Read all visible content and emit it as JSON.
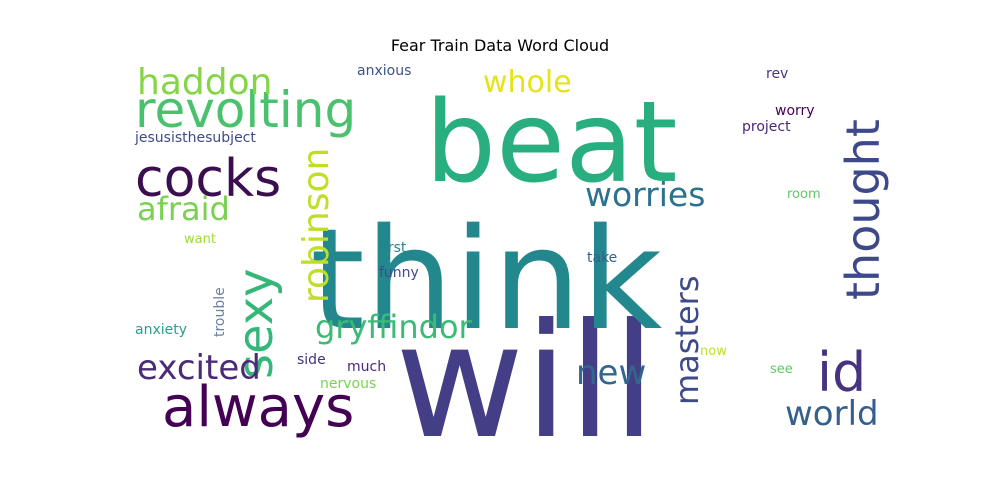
{
  "chart_data": {
    "type": "wordcloud",
    "title": "Fear Train Data Word Cloud",
    "words": [
      {
        "text": "will",
        "color": "#433e85"
      },
      {
        "text": "think",
        "color": "#23888e"
      },
      {
        "text": "beat",
        "color": "#29af7f"
      },
      {
        "text": "always",
        "color": "#440154"
      },
      {
        "text": "revolting",
        "color": "#4ac16d"
      },
      {
        "text": "cocks",
        "color": "#3b0f4f"
      },
      {
        "text": "sexy",
        "color": "#35b779"
      },
      {
        "text": "thought",
        "color": "#3e4989"
      },
      {
        "text": "id",
        "color": "#46327e"
      },
      {
        "text": "haddon",
        "color": "#86d549"
      },
      {
        "text": "robinson",
        "color": "#bddf26"
      },
      {
        "text": "masters",
        "color": "#3e4a89"
      },
      {
        "text": "gryffindor",
        "color": "#3bbb75"
      },
      {
        "text": "excited",
        "color": "#4b2a76"
      },
      {
        "text": "worries",
        "color": "#2c718e"
      },
      {
        "text": "afraid",
        "color": "#7ad151"
      },
      {
        "text": "world",
        "color": "#355f8d"
      },
      {
        "text": "new",
        "color": "#31668e"
      },
      {
        "text": "whole",
        "color": "#e5e419"
      },
      {
        "text": "jesusisthesubject",
        "color": "#3e4a89"
      },
      {
        "text": "anxious",
        "color": "#3b528b"
      },
      {
        "text": "rev",
        "color": "#46337e"
      },
      {
        "text": "worry",
        "color": "#440154"
      },
      {
        "text": "project",
        "color": "#482677"
      },
      {
        "text": "room",
        "color": "#5ec962"
      },
      {
        "text": "want",
        "color": "#a0da39"
      },
      {
        "text": "first",
        "color": "#26828e"
      },
      {
        "text": "funny",
        "color": "#3e4a89"
      },
      {
        "text": "take",
        "color": "#355f8d"
      },
      {
        "text": "trouble",
        "color": "#6b7fa8"
      },
      {
        "text": "anxiety",
        "color": "#2a9d8f"
      },
      {
        "text": "side",
        "color": "#46337e"
      },
      {
        "text": "much",
        "color": "#482878"
      },
      {
        "text": "nervous",
        "color": "#7ad151"
      },
      {
        "text": "now",
        "color": "#c2df23"
      },
      {
        "text": "see",
        "color": "#5ec962"
      }
    ]
  }
}
